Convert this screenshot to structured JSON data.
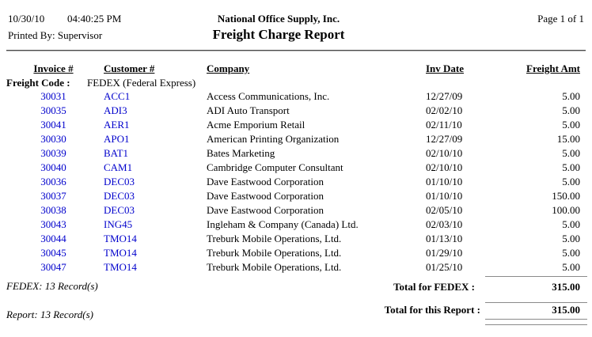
{
  "header": {
    "date": "10/30/10",
    "time": "04:40:25 PM",
    "printed_by": "Printed By: Supervisor",
    "company_name": "National Office Supply, Inc.",
    "report_title": "Freight Charge Report",
    "page_indicator": "Page 1 of 1"
  },
  "group": {
    "freight_code_label": "Freight Code :",
    "freight_code_value": "FEDEX (Federal Express)"
  },
  "table": {
    "columns": [
      "Invoice #",
      "Customer #",
      "Company",
      "Inv Date",
      "Freight Amt"
    ],
    "rows": [
      {
        "invoice": "30031",
        "customer": "ACC1",
        "company": "Access Communications, Inc.",
        "date": "12/27/09",
        "amount": "5.00"
      },
      {
        "invoice": "30035",
        "customer": "ADI3",
        "company": "ADI Auto Transport",
        "date": "02/02/10",
        "amount": "5.00"
      },
      {
        "invoice": "30041",
        "customer": "AER1",
        "company": "Acme Emporium Retail",
        "date": "02/11/10",
        "amount": "5.00"
      },
      {
        "invoice": "30030",
        "customer": "APO1",
        "company": "American Printing Organization",
        "date": "12/27/09",
        "amount": "15.00"
      },
      {
        "invoice": "30039",
        "customer": "BAT1",
        "company": "Bates Marketing",
        "date": "02/10/10",
        "amount": "5.00"
      },
      {
        "invoice": "30040",
        "customer": "CAM1",
        "company": "Cambridge Computer Consultant",
        "date": "02/10/10",
        "amount": "5.00"
      },
      {
        "invoice": "30036",
        "customer": "DEC03",
        "company": "Dave Eastwood Corporation",
        "date": "01/10/10",
        "amount": "5.00"
      },
      {
        "invoice": "30037",
        "customer": "DEC03",
        "company": "Dave Eastwood Corporation",
        "date": "01/10/10",
        "amount": "150.00"
      },
      {
        "invoice": "30038",
        "customer": "DEC03",
        "company": "Dave Eastwood Corporation",
        "date": "02/05/10",
        "amount": "100.00"
      },
      {
        "invoice": "30043",
        "customer": "ING45",
        "company": "Ingleham & Company (Canada) Ltd.",
        "date": "02/03/10",
        "amount": "5.00"
      },
      {
        "invoice": "30044",
        "customer": "TMO14",
        "company": "Treburk Mobile Operations, Ltd.",
        "date": "01/13/10",
        "amount": "5.00"
      },
      {
        "invoice": "30045",
        "customer": "TMO14",
        "company": "Treburk Mobile Operations, Ltd.",
        "date": "01/29/10",
        "amount": "5.00"
      },
      {
        "invoice": "30047",
        "customer": "TMO14",
        "company": "Treburk Mobile Operations, Ltd.",
        "date": "01/25/10",
        "amount": "5.00"
      }
    ]
  },
  "summary": {
    "group_records": "FEDEX: 13 Record(s)",
    "group_total_label": "Total for FEDEX :",
    "group_total_amount": "315.00",
    "report_records": "Report: 13 Record(s)",
    "report_total_label": "Total for this Report :",
    "report_total_amount": "315.00"
  },
  "colors": {
    "link_blue": "#0000cc",
    "rule_gray": "#8a8a8a",
    "header_rule": "#4a4a4a",
    "text": "#000000",
    "background": "#ffffff"
  }
}
